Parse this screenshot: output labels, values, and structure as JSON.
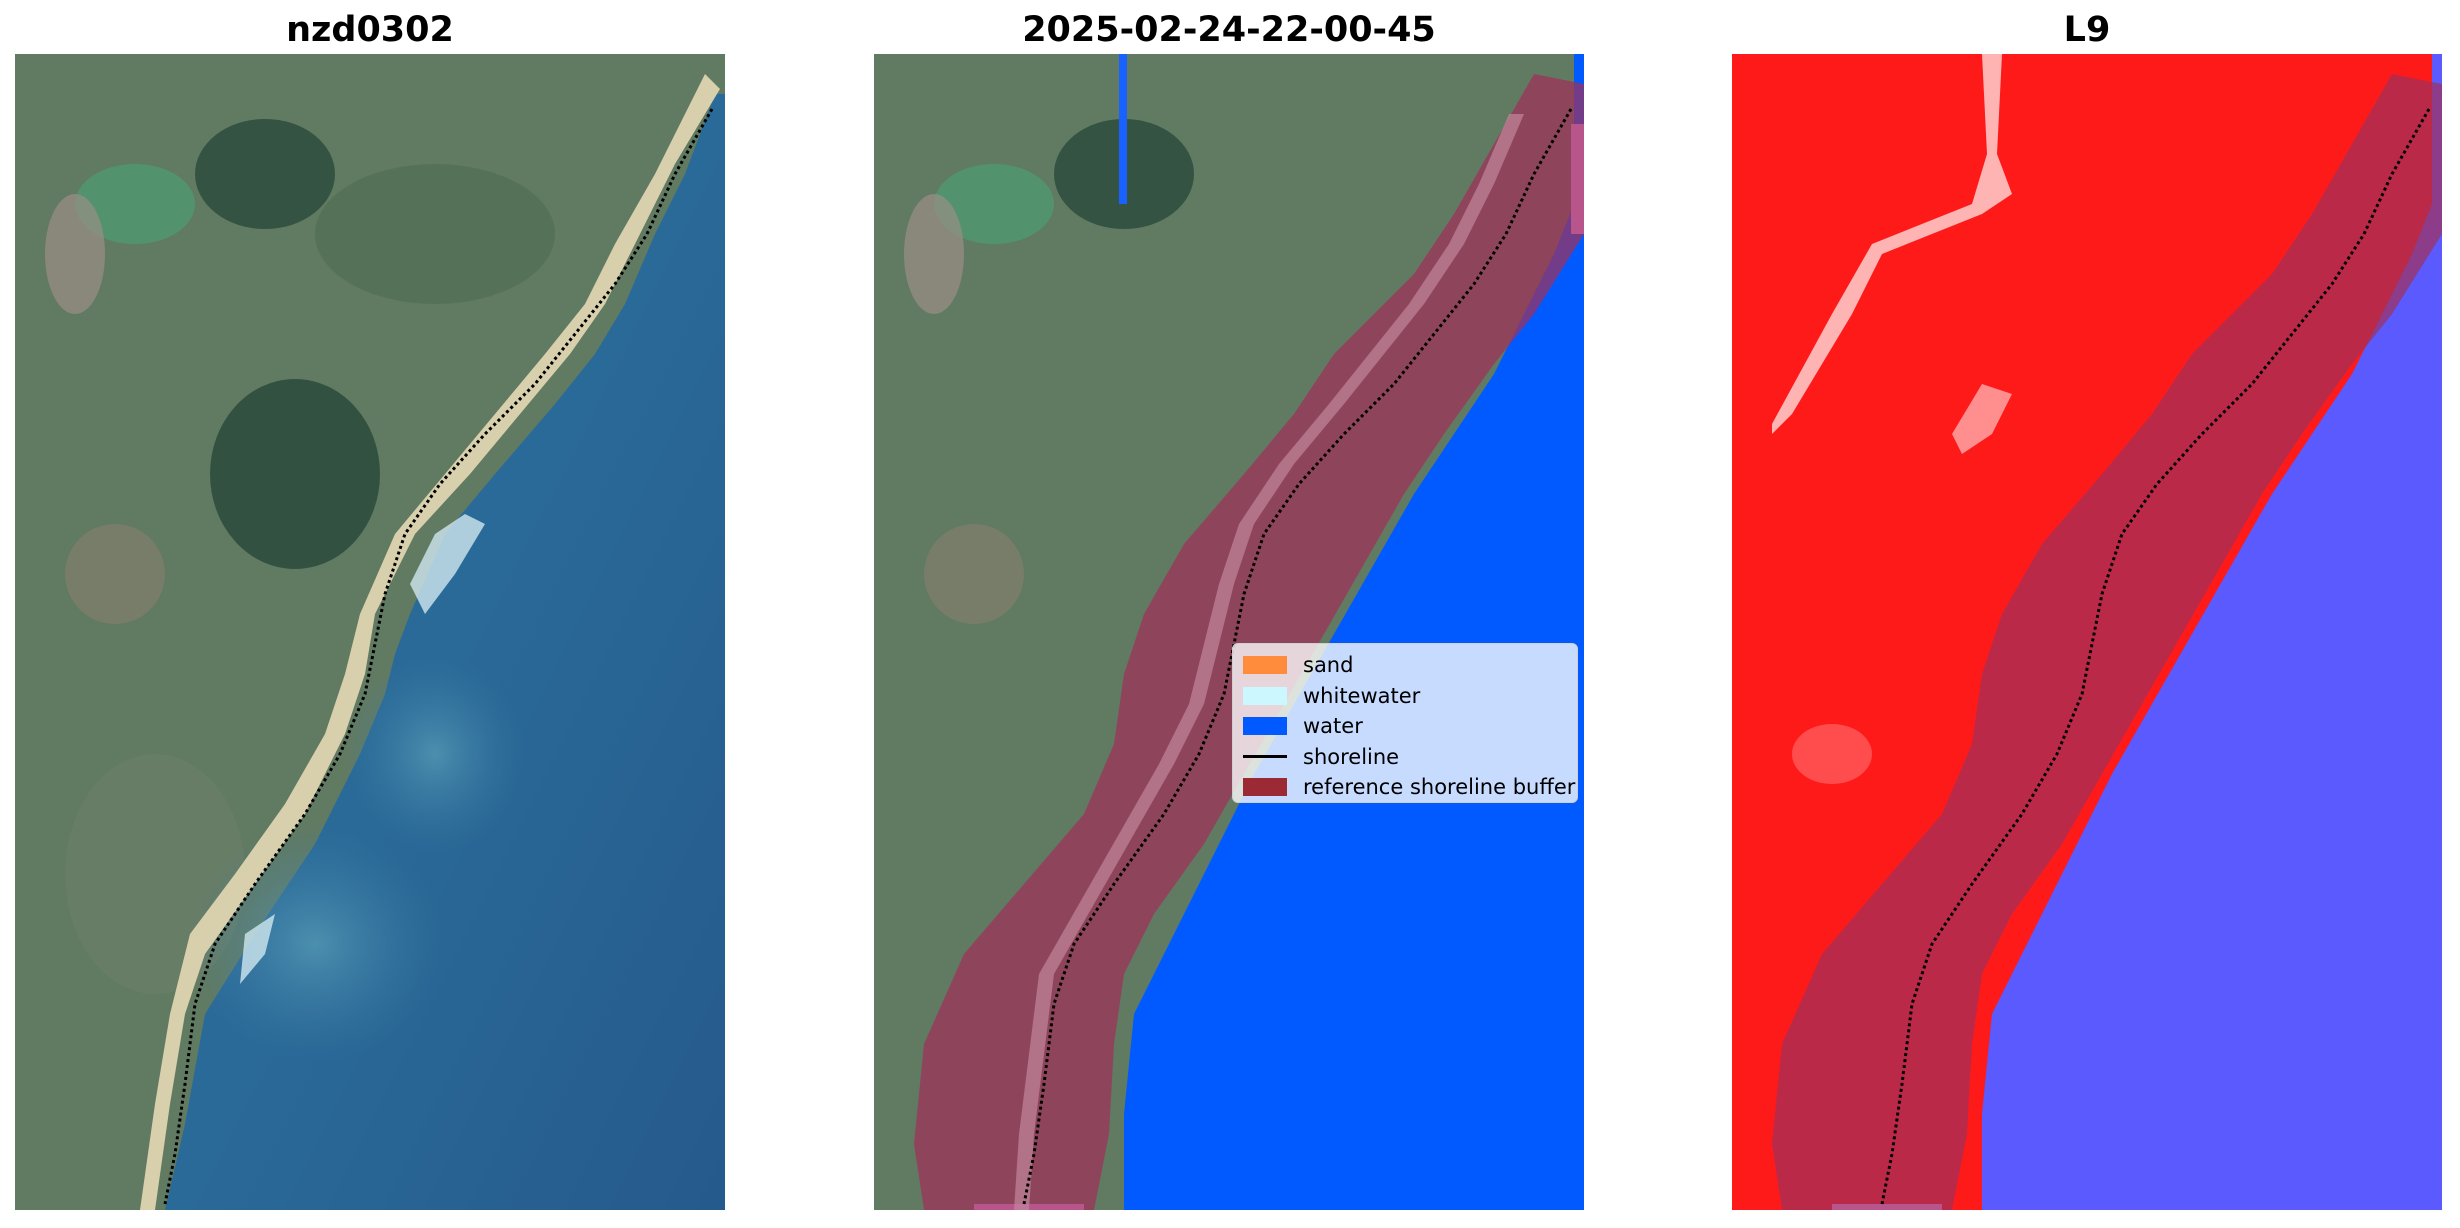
{
  "panels": [
    {
      "title": "nzd0302"
    },
    {
      "title": "2025-02-24-22-00-45"
    },
    {
      "title": "L9"
    }
  ],
  "legend": {
    "items": [
      {
        "label": "sand",
        "color": "#ff8c3c",
        "kind": "patch"
      },
      {
        "label": "whitewater",
        "color": "#ccf7ff",
        "kind": "patch"
      },
      {
        "label": "water",
        "color": "#005aff",
        "kind": "patch"
      },
      {
        "label": "shoreline",
        "color": "#000000",
        "kind": "line"
      },
      {
        "label": "reference shoreline buffer",
        "color": "#9b2a35",
        "kind": "patch"
      }
    ]
  },
  "colors": {
    "land": "#5f7760",
    "beach": "#d9d1ad",
    "ocean": "#2a5e90",
    "water_class": "#005aff",
    "buffer": "#a0305a",
    "index_land": "#ff1a1a",
    "index_water": "#5a5aff"
  }
}
